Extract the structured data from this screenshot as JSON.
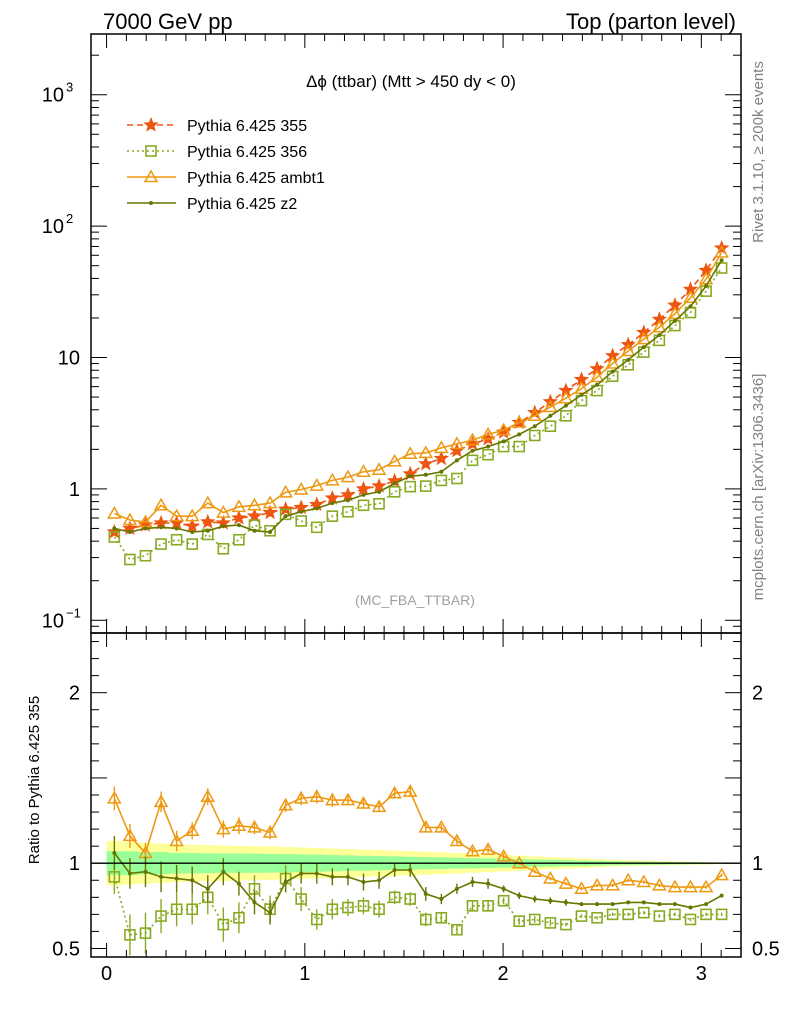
{
  "header": {
    "left": "7000 GeV pp",
    "right": "Top (parton level)"
  },
  "side": {
    "upper": "Rivet 3.1.10, ≥ 200k events",
    "lower": "mcplots.cern.ch [arXiv:1306.3436]"
  },
  "chart_data": [
    {
      "type": "line",
      "title": "Δϕ (ttbar) (Mtt > 450 dy < 0)",
      "watermark": "(MC_FBA_TTBAR)",
      "yscale": "log",
      "xlim": [
        -0.0785,
        3.2
      ],
      "ylim": [
        0.08,
        2900
      ],
      "legend_position": "top-left",
      "y_tick_labels": [
        {
          "v": 0.1,
          "base": "10",
          "exp": "−1"
        },
        {
          "v": 1,
          "base": "1",
          "exp": ""
        },
        {
          "v": 10,
          "base": "10",
          "exp": ""
        },
        {
          "v": 100,
          "base": "10",
          "exp": "2"
        },
        {
          "v": 1000,
          "base": "10",
          "exp": "3"
        }
      ],
      "x": [
        0.0393,
        0.1178,
        0.1963,
        0.2749,
        0.3534,
        0.432,
        0.5105,
        0.589,
        0.6676,
        0.7461,
        0.8247,
        0.9032,
        0.9817,
        1.0603,
        1.1388,
        1.2174,
        1.2959,
        1.3744,
        1.453,
        1.5315,
        1.6101,
        1.6886,
        1.7671,
        1.8457,
        1.9242,
        2.0028,
        2.0813,
        2.1598,
        2.2384,
        2.3169,
        2.3955,
        2.474,
        2.5525,
        2.6311,
        2.7096,
        2.7882,
        2.8667,
        2.9452,
        3.0238,
        3.1023
      ],
      "series": [
        {
          "name": "Pythia 6.425 355",
          "color": "#ee5511",
          "style": "dashed",
          "marker": "star",
          "values": [
            0.47,
            0.5,
            0.53,
            0.55,
            0.55,
            0.52,
            0.56,
            0.55,
            0.6,
            0.62,
            0.66,
            0.7,
            0.72,
            0.76,
            0.85,
            0.9,
            1.0,
            1.05,
            1.15,
            1.3,
            1.55,
            1.7,
            1.95,
            2.2,
            2.4,
            2.7,
            3.2,
            3.8,
            4.6,
            5.6,
            6.8,
            8.2,
            10.3,
            12.5,
            15.5,
            19.5,
            25.0,
            33.0,
            46.0,
            68.0
          ]
        },
        {
          "name": "Pythia 6.425 356",
          "color": "#88aa22",
          "style": "dotted",
          "marker": "square",
          "values": [
            0.43,
            0.29,
            0.31,
            0.38,
            0.41,
            0.38,
            0.45,
            0.35,
            0.41,
            0.53,
            0.48,
            0.64,
            0.57,
            0.51,
            0.62,
            0.67,
            0.75,
            0.77,
            0.95,
            1.04,
            1.05,
            1.16,
            1.2,
            1.65,
            1.82,
            2.1,
            2.1,
            2.55,
            3.0,
            3.6,
            4.7,
            5.6,
            7.2,
            8.8,
            11.0,
            13.5,
            17.5,
            22.0,
            32.0,
            48.0
          ]
        },
        {
          "name": "Pythia 6.425 ambt1",
          "color": "#ee9911",
          "style": "solid",
          "marker": "triangle",
          "values": [
            0.65,
            0.58,
            0.56,
            0.75,
            0.62,
            0.62,
            0.78,
            0.66,
            0.73,
            0.75,
            0.78,
            0.94,
            0.99,
            1.06,
            1.16,
            1.23,
            1.35,
            1.4,
            1.62,
            1.85,
            1.88,
            2.05,
            2.2,
            2.35,
            2.6,
            2.8,
            3.2,
            3.6,
            4.2,
            4.9,
            5.8,
            7.1,
            9.0,
            11.2,
            13.8,
            17.0,
            21.5,
            28.5,
            39.5,
            63.0
          ]
        },
        {
          "name": "Pythia 6.425 z2",
          "color": "#667700",
          "style": "solid",
          "marker": "dot",
          "values": [
            0.5,
            0.47,
            0.5,
            0.51,
            0.5,
            0.47,
            0.48,
            0.52,
            0.53,
            0.48,
            0.47,
            0.62,
            0.67,
            0.71,
            0.78,
            0.82,
            0.9,
            0.95,
            1.1,
            1.25,
            1.28,
            1.35,
            1.65,
            1.95,
            2.1,
            2.3,
            2.6,
            3.0,
            3.6,
            4.3,
            5.2,
            6.2,
            7.8,
            9.6,
            12.0,
            14.8,
            19.0,
            24.5,
            35.0,
            55.0
          ]
        }
      ]
    },
    {
      "type": "line",
      "ylabel": "Ratio to Pythia 6.425 355",
      "xlim": [
        -0.0785,
        3.2
      ],
      "ylim": [
        0.45,
        2.35
      ],
      "x_tick_labels": [
        0,
        1,
        2,
        3
      ],
      "y_tick_labels": [
        0.5,
        1,
        2
      ],
      "band_inner": [
        0.07,
        0.07,
        0.065,
        0.065,
        0.06,
        0.06,
        0.058,
        0.057,
        0.057,
        0.056,
        0.055,
        0.054,
        0.052,
        0.05,
        0.048,
        0.046,
        0.044,
        0.042,
        0.04,
        0.038,
        0.036,
        0.034,
        0.032,
        0.03,
        0.028,
        0.026,
        0.024,
        0.022,
        0.02,
        0.018,
        0.016,
        0.014,
        0.012,
        0.01,
        0.009,
        0.008,
        0.007,
        0.006,
        0.005,
        0.004
      ],
      "band_outer": [
        0.13,
        0.125,
        0.12,
        0.115,
        0.11,
        0.108,
        0.106,
        0.104,
        0.102,
        0.1,
        0.098,
        0.095,
        0.092,
        0.089,
        0.086,
        0.083,
        0.08,
        0.077,
        0.074,
        0.071,
        0.068,
        0.064,
        0.06,
        0.056,
        0.052,
        0.048,
        0.044,
        0.04,
        0.036,
        0.032,
        0.028,
        0.024,
        0.02,
        0.017,
        0.015,
        0.013,
        0.011,
        0.009,
        0.007,
        0.005
      ],
      "series": [
        {
          "name": "Pythia 6.425 356",
          "color": "#88aa22",
          "style": "dotted",
          "marker": "square",
          "values": [
            0.92,
            0.58,
            0.59,
            0.69,
            0.73,
            0.73,
            0.8,
            0.64,
            0.68,
            0.85,
            0.73,
            0.91,
            0.79,
            0.67,
            0.73,
            0.74,
            0.75,
            0.73,
            0.8,
            0.79,
            0.67,
            0.68,
            0.61,
            0.75,
            0.75,
            0.78,
            0.66,
            0.67,
            0.65,
            0.64,
            0.69,
            0.68,
            0.7,
            0.7,
            0.71,
            0.69,
            0.7,
            0.67,
            0.7,
            0.7
          ],
          "err": [
            0.1,
            0.12,
            0.12,
            0.1,
            0.1,
            0.09,
            0.1,
            0.1,
            0.09,
            0.08,
            0.08,
            0.08,
            0.07,
            0.06,
            0.06,
            0.05,
            0.05,
            0.05,
            0.04,
            0.04,
            0.04,
            0.03,
            0.03,
            0.03,
            0.03,
            0.02,
            0.02,
            0.02,
            0.02,
            0.01,
            0.01,
            0.01,
            0.01,
            0.01,
            0.01,
            0.01,
            0.01,
            0.01,
            0.01,
            0.01
          ]
        },
        {
          "name": "Pythia 6.425 ambt1",
          "color": "#ee9911",
          "style": "solid",
          "marker": "triangle",
          "values": [
            1.38,
            1.16,
            1.06,
            1.36,
            1.13,
            1.19,
            1.39,
            1.2,
            1.22,
            1.21,
            1.18,
            1.34,
            1.38,
            1.39,
            1.37,
            1.37,
            1.35,
            1.33,
            1.41,
            1.42,
            1.21,
            1.21,
            1.13,
            1.07,
            1.08,
            1.04,
            1.0,
            0.95,
            0.91,
            0.88,
            0.85,
            0.87,
            0.87,
            0.9,
            0.89,
            0.87,
            0.86,
            0.86,
            0.86,
            0.93
          ],
          "err": [
            0.07,
            0.07,
            0.06,
            0.06,
            0.06,
            0.05,
            0.05,
            0.05,
            0.05,
            0.04,
            0.04,
            0.04,
            0.04,
            0.04,
            0.04,
            0.03,
            0.03,
            0.03,
            0.03,
            0.03,
            0.03,
            0.02,
            0.02,
            0.02,
            0.02,
            0.02,
            0.01,
            0.01,
            0.01,
            0.01,
            0.01,
            0.01,
            0.01,
            0.01,
            0.01,
            0.01,
            0.01,
            0.01,
            0.01,
            0.01
          ]
        },
        {
          "name": "Pythia 6.425 z2",
          "color": "#667700",
          "style": "solid",
          "marker": "dot",
          "values": [
            1.06,
            0.94,
            0.95,
            0.92,
            0.91,
            0.9,
            0.85,
            0.95,
            0.88,
            0.77,
            0.71,
            0.89,
            0.94,
            0.94,
            0.92,
            0.92,
            0.89,
            0.9,
            0.96,
            0.96,
            0.82,
            0.79,
            0.85,
            0.89,
            0.88,
            0.85,
            0.81,
            0.79,
            0.78,
            0.77,
            0.76,
            0.76,
            0.76,
            0.77,
            0.77,
            0.76,
            0.76,
            0.74,
            0.76,
            0.81
          ],
          "err": [
            0.1,
            0.09,
            0.09,
            0.09,
            0.08,
            0.08,
            0.08,
            0.08,
            0.07,
            0.07,
            0.07,
            0.06,
            0.06,
            0.06,
            0.05,
            0.05,
            0.05,
            0.05,
            0.04,
            0.04,
            0.04,
            0.03,
            0.03,
            0.03,
            0.03,
            0.02,
            0.02,
            0.02,
            0.02,
            0.02,
            0.01,
            0.01,
            0.01,
            0.01,
            0.01,
            0.01,
            0.01,
            0.01,
            0.01,
            0.01
          ]
        },
        {
          "name": "Pythia 6.425 355",
          "color": "#000000",
          "style": "solid",
          "marker": "none",
          "values": [
            1,
            1,
            1,
            1,
            1,
            1,
            1,
            1,
            1,
            1,
            1,
            1,
            1,
            1,
            1,
            1,
            1,
            1,
            1,
            1,
            1,
            1,
            1,
            1,
            1,
            1,
            1,
            1,
            1,
            1,
            1,
            1,
            1,
            1,
            1,
            1,
            1,
            1,
            1,
            1
          ]
        }
      ]
    }
  ]
}
